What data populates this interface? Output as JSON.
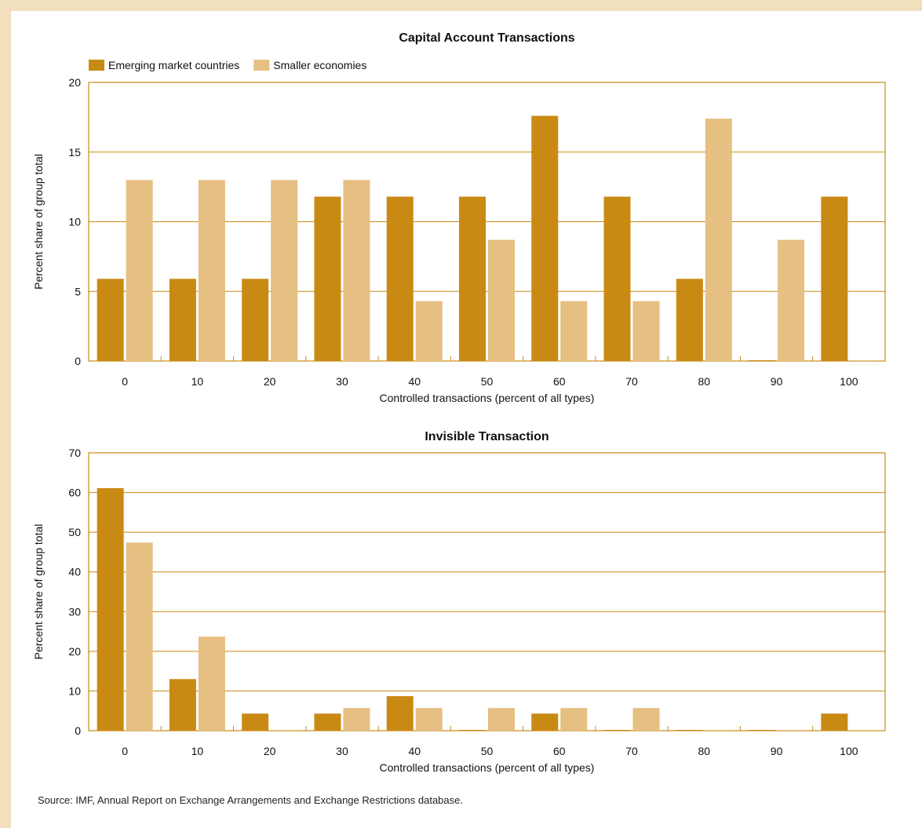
{
  "source_note": "Source:  IMF, Annual Report on Exchange Arrangements and Exchange Restrictions database.",
  "colors": {
    "emerging": "#c98a14",
    "smaller": "#e6bf82",
    "frame": "#c98a14",
    "grid": "#c98a14"
  },
  "chart_data": [
    {
      "type": "bar",
      "title": "Capital Account Transactions",
      "xlabel": "Controlled transactions (percent of all types)",
      "ylabel": "Percent share of group total",
      "ylim": [
        0,
        20
      ],
      "yticks": [
        0,
        5,
        10,
        15,
        20
      ],
      "grid": true,
      "legend_position": "top-left",
      "categories": [
        "0",
        "10",
        "20",
        "30",
        "40",
        "50",
        "60",
        "70",
        "80",
        "90",
        "100"
      ],
      "series": [
        {
          "name": "Emerging market countries",
          "color": "#c98a14",
          "values": [
            5.9,
            5.9,
            5.9,
            11.8,
            11.8,
            11.8,
            17.6,
            11.8,
            5.9,
            0,
            11.8
          ]
        },
        {
          "name": "Smaller economies",
          "color": "#e6bf82",
          "values": [
            13.0,
            13.0,
            13.0,
            13.0,
            4.3,
            8.7,
            4.3,
            4.3,
            17.4,
            8.7,
            0
          ]
        }
      ]
    },
    {
      "type": "bar",
      "title": "Invisible Transaction",
      "xlabel": "Controlled transactions (percent of all types)",
      "ylabel": "Percent share of group total",
      "ylim": [
        0,
        70
      ],
      "yticks": [
        0,
        10,
        20,
        30,
        40,
        50,
        60,
        70
      ],
      "grid": true,
      "categories": [
        "0",
        "10",
        "20",
        "30",
        "40",
        "50",
        "60",
        "70",
        "80",
        "90",
        "100"
      ],
      "series": [
        {
          "name": "Emerging market countries",
          "color": "#c98a14",
          "values": [
            61.1,
            13.0,
            4.3,
            4.3,
            8.7,
            0,
            4.3,
            0,
            0,
            0,
            4.3
          ]
        },
        {
          "name": "Smaller economies",
          "color": "#e6bf82",
          "values": [
            47.4,
            23.7,
            0,
            5.7,
            5.7,
            5.7,
            5.7,
            5.7,
            0,
            0,
            0
          ]
        }
      ]
    }
  ]
}
